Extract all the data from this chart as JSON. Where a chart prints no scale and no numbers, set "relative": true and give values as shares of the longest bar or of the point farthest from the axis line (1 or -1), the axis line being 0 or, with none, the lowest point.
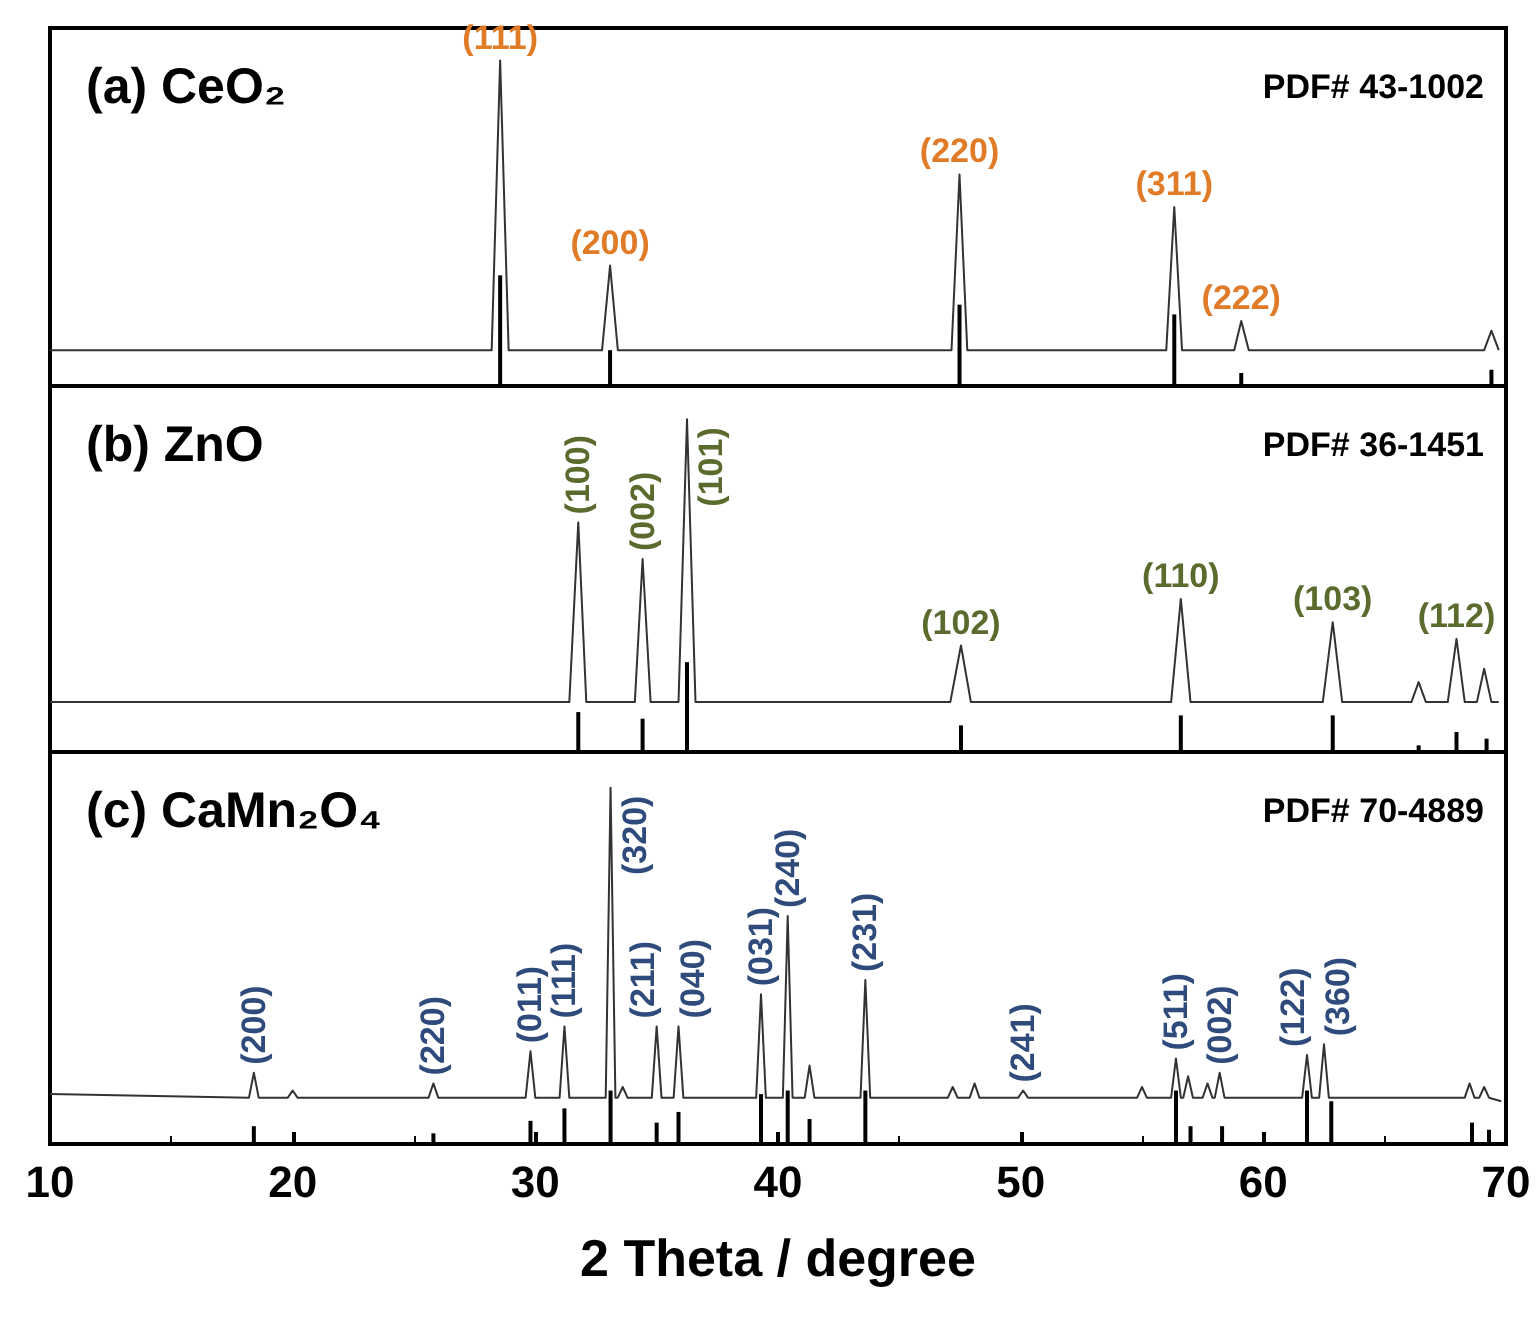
{
  "chart_data": [
    {
      "type": "line",
      "title": "(a) CeO₂",
      "subtitle": "PDF# 43-1002",
      "relative": true,
      "xlim": [
        10,
        70
      ],
      "xticks": [
        10,
        20,
        30,
        40,
        50,
        60,
        70
      ],
      "tick_labels": false,
      "series": [
        {
          "color": "#333333",
          "x": [
            10,
            28.2,
            28.55,
            28.9,
            32.75,
            33.08,
            33.4,
            47.15,
            47.48,
            47.8,
            56.0,
            56.33,
            56.65,
            58.8,
            59.09,
            59.4,
            69.1,
            69.4,
            69.7
          ],
          "values": [
            0.11,
            0.11,
            1,
            0.11,
            0.11,
            0.37,
            0.11,
            0.11,
            0.65,
            0.11,
            0.11,
            0.55,
            0.11,
            0.11,
            0.2,
            0.11,
            0.11,
            0.17,
            0.11
          ]
        },
        {
          "type": "bar",
          "color": "#000000",
          "x": [
            28.55,
            33.08,
            47.48,
            56.33,
            59.09,
            69.4
          ],
          "values": [
            0.34,
            0.11,
            0.25,
            0.22,
            0.04,
            0.05
          ]
        }
      ],
      "annotations": [
        {
          "text": "(111)",
          "x": 28.55,
          "y": 1
        },
        {
          "text": "(200)",
          "x": 33.08,
          "y": 0.37
        },
        {
          "text": "(220)",
          "x": 47.48,
          "y": 0.65
        },
        {
          "text": "(311)",
          "x": 56.33,
          "y": 0.55
        },
        {
          "text": "(222)",
          "x": 59.09,
          "y": 0.2
        }
      ]
    },
    {
      "type": "line",
      "title": "(b) ZnO",
      "subtitle": "PDF# 36-1451",
      "relative": true,
      "xlim": [
        10,
        70
      ],
      "xticks": [
        10,
        20,
        30,
        40,
        50,
        60,
        70
      ],
      "tick_labels": false,
      "series": [
        {
          "color": "#333333",
          "x": [
            10,
            31.4,
            31.77,
            32.1,
            34.1,
            34.42,
            34.75,
            35.9,
            36.25,
            36.6,
            47.1,
            47.54,
            47.95,
            56.2,
            56.6,
            57.0,
            62.45,
            62.86,
            63.25,
            66.1,
            66.4,
            66.7,
            67.6,
            67.96,
            68.3,
            68.8,
            69.1,
            69.4,
            69.7
          ],
          "values": [
            0.15,
            0.15,
            0.69,
            0.15,
            0.15,
            0.58,
            0.15,
            0.15,
            1,
            0.15,
            0.15,
            0.32,
            0.15,
            0.15,
            0.46,
            0.15,
            0.15,
            0.39,
            0.15,
            0.15,
            0.21,
            0.15,
            0.15,
            0.34,
            0.15,
            0.15,
            0.25,
            0.15,
            0.15
          ]
        },
        {
          "type": "bar",
          "color": "#000000",
          "x": [
            31.77,
            34.42,
            36.25,
            47.54,
            56.6,
            62.86,
            66.4,
            67.96,
            69.2
          ],
          "values": [
            0.12,
            0.1,
            0.27,
            0.08,
            0.11,
            0.11,
            0.02,
            0.06,
            0.04
          ]
        }
      ],
      "annotations": [
        {
          "text": "(100)",
          "x": 31.77,
          "y": 0.69
        },
        {
          "text": "(002)",
          "x": 34.42,
          "y": 0.58
        },
        {
          "text": "(101)",
          "x": 36.25,
          "y": 1
        },
        {
          "text": "(102)",
          "x": 47.54,
          "y": 0.32
        },
        {
          "text": "(110)",
          "x": 56.6,
          "y": 0.46
        },
        {
          "text": "(103)",
          "x": 62.86,
          "y": 0.39
        },
        {
          "text": "(112)",
          "x": 67.96,
          "y": 0.34
        }
      ]
    },
    {
      "type": "line",
      "title": "(c) CaMn₂O₄",
      "subtitle": "PDF# 70-4889",
      "xlabel": "2 Theta / degree",
      "relative": true,
      "xlim": [
        10,
        70
      ],
      "xticks": [
        10,
        20,
        30,
        40,
        50,
        60,
        70
      ],
      "tick_labels": "x",
      "series": [
        {
          "color": "#333333",
          "x": [
            10,
            18.2,
            18.4,
            18.6,
            19.8,
            20.0,
            20.2,
            25.6,
            25.8,
            26.0,
            29.6,
            29.8,
            30.0,
            31.0,
            31.2,
            31.4,
            32.9,
            33.1,
            33.3,
            33.4,
            33.6,
            33.8,
            34.8,
            35.0,
            35.2,
            35.7,
            35.9,
            36.1,
            39.1,
            39.3,
            39.5,
            40.2,
            40.4,
            40.6,
            41.1,
            41.3,
            41.5,
            43.4,
            43.6,
            43.8,
            47.0,
            47.2,
            47.4,
            47.9,
            48.1,
            48.3,
            49.9,
            50.1,
            50.3,
            54.8,
            55.0,
            55.2,
            56.2,
            56.4,
            56.6,
            56.7,
            56.9,
            57.1,
            57.5,
            57.7,
            57.9,
            58.0,
            58.2,
            58.4,
            61.6,
            61.8,
            62.0,
            62.3,
            62.5,
            62.7,
            68.3,
            68.5,
            68.7,
            68.9,
            69.1,
            69.3,
            69.8
          ],
          "values": [
            0.14,
            0.13,
            0.2,
            0.13,
            0.13,
            0.15,
            0.13,
            0.13,
            0.17,
            0.13,
            0.13,
            0.26,
            0.13,
            0.13,
            0.33,
            0.13,
            0.13,
            1,
            0.13,
            0.13,
            0.16,
            0.13,
            0.13,
            0.33,
            0.13,
            0.13,
            0.33,
            0.13,
            0.13,
            0.42,
            0.13,
            0.13,
            0.64,
            0.13,
            0.13,
            0.22,
            0.13,
            0.13,
            0.46,
            0.13,
            0.13,
            0.16,
            0.13,
            0.13,
            0.17,
            0.13,
            0.13,
            0.15,
            0.13,
            0.13,
            0.16,
            0.13,
            0.13,
            0.24,
            0.13,
            0.13,
            0.19,
            0.13,
            0.13,
            0.17,
            0.13,
            0.13,
            0.2,
            0.13,
            0.13,
            0.25,
            0.13,
            0.13,
            0.28,
            0.13,
            0.13,
            0.17,
            0.13,
            0.13,
            0.16,
            0.13,
            0.12
          ]
        },
        {
          "type": "bar",
          "color": "#000000",
          "x": [
            18.4,
            25.8,
            29.8,
            31.2,
            33.1,
            35.0,
            35.9,
            39.3,
            40.4,
            41.3,
            43.6,
            56.4,
            57.0,
            58.3,
            61.8,
            62.8,
            68.6,
            69.3
          ],
          "values": [
            0.05,
            0.03,
            0.065,
            0.1,
            0.15,
            0.06,
            0.09,
            0.14,
            0.15,
            0.07,
            0.15,
            0.15,
            0.05,
            0.05,
            0.15,
            0.12,
            0.06,
            0.04
          ]
        }
      ],
      "annotations": [
        {
          "text": "(200)",
          "x": 18.4,
          "y": 0.2
        },
        {
          "text": "(220)",
          "x": 25.8,
          "y": 0.17
        },
        {
          "text": "(011)",
          "x": 29.8,
          "y": 0.26
        },
        {
          "text": "(111)",
          "x": 31.2,
          "y": 0.33
        },
        {
          "text": "(320)",
          "x": 33.1,
          "y": 1
        },
        {
          "text": "(211)",
          "x": 35.0,
          "y": 0.33
        },
        {
          "text": "(040)",
          "x": 35.9,
          "y": 0.33
        },
        {
          "text": "(031)",
          "x": 39.3,
          "y": 0.42
        },
        {
          "text": "(240)",
          "x": 40.4,
          "y": 0.64
        },
        {
          "text": "(231)",
          "x": 43.6,
          "y": 0.46
        },
        {
          "text": "(241)",
          "x": 50.1,
          "y": 0.15
        },
        {
          "text": "(511)",
          "x": 56.4,
          "y": 0.24
        },
        {
          "text": "(002)",
          "x": 58.2,
          "y": 0.2
        },
        {
          "text": "(122)",
          "x": 61.8,
          "y": 0.25
        },
        {
          "text": "(360)",
          "x": 62.5,
          "y": 0.28
        }
      ]
    }
  ]
}
